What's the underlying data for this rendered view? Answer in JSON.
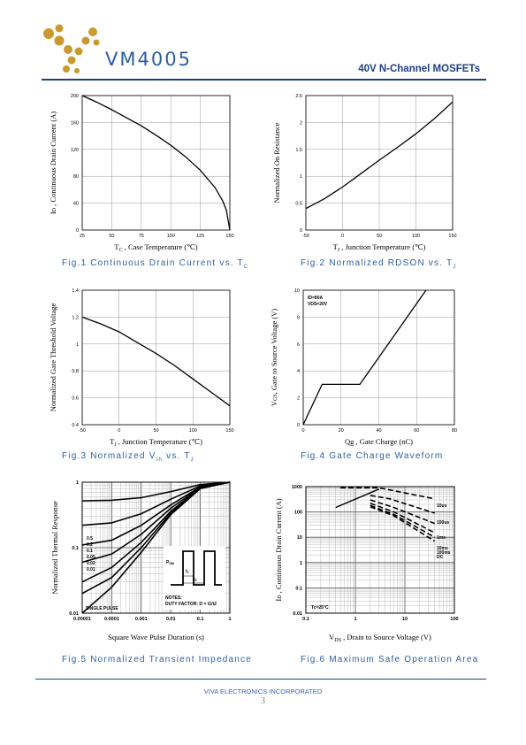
{
  "header": {
    "brand": "VM4005",
    "subtitle": "40V N-Channel MOSFETs",
    "logo_icon": "gold-dots-v-logo",
    "logo_color": "#c99a2e"
  },
  "footer": {
    "company": "VIVA ELECTRONICS INCORPORATED",
    "page": "3"
  },
  "figures": {
    "fig1": {
      "caption": "Fig.1   Continuous Drain Current vs. T",
      "caption_sub": "C"
    },
    "fig2": {
      "caption": "Fig.2   Normalized RDSON vs. T",
      "caption_sub": "J"
    },
    "fig3": {
      "caption": "Fig.3   Normalized V",
      "caption_sub1": "th",
      "caption_mid": " vs. T",
      "caption_sub2": "J"
    },
    "fig4": {
      "caption": "Fig.4   Gate Charge Waveform"
    },
    "fig5": {
      "caption": "Fig.5   Normalized Transient Impedance"
    },
    "fig6": {
      "caption": "Fig.6   Maximum Safe Operation Area"
    }
  },
  "chart_data": [
    {
      "id": "fig1",
      "type": "line",
      "xlabel": "T",
      "xlabel_sub": "C",
      "xlabel_rest": " , Case Temperature (℃)",
      "ylabel": "I",
      "ylabel_sub": "D",
      "ylabel_rest": " , Continuous Drain Current (A)",
      "xlim": [
        25,
        150
      ],
      "ylim": [
        0,
        200
      ],
      "xticks": [
        "25",
        "50",
        "75",
        "100",
        "125",
        "150"
      ],
      "yticks": [
        "0",
        "40",
        "80",
        "120",
        "160",
        "200"
      ],
      "grid": true,
      "series": [
        {
          "x": [
            25,
            37.5,
            50,
            62.5,
            75,
            87.5,
            100,
            112.5,
            125,
            137.5,
            143.75,
            147,
            150
          ],
          "y": [
            200,
            190,
            179,
            167,
            155,
            141,
            126,
            109,
            89,
            63,
            44,
            30,
            0
          ]
        }
      ]
    },
    {
      "id": "fig2",
      "type": "line",
      "xlabel": "T",
      "xlabel_sub": "J",
      "xlabel_rest": " , Junction Temperature (℃)",
      "ylabel": "Normalized On Resistance",
      "xlim": [
        -50,
        150
      ],
      "ylim": [
        0,
        2.5
      ],
      "xticks": [
        "-50",
        "0",
        "50",
        "100",
        "150"
      ],
      "yticks": [
        "0",
        "0.5",
        "1",
        "1.5",
        "2",
        "2.5"
      ],
      "grid": true,
      "series": [
        {
          "x": [
            -50,
            -25,
            0,
            25,
            50,
            75,
            100,
            125,
            150
          ],
          "y": [
            0.4,
            0.58,
            0.8,
            1.05,
            1.3,
            1.54,
            1.79,
            2.07,
            2.38
          ]
        }
      ]
    },
    {
      "id": "fig3",
      "type": "line",
      "xlabel": "T",
      "xlabel_sub": "J",
      "xlabel_rest": " , Junction Temperature (℃)",
      "ylabel": "Normalized Gate Threshold Voltage",
      "xlim": [
        -50,
        150
      ],
      "ylim": [
        0.4,
        1.4
      ],
      "xticks": [
        "-50",
        "0",
        "50",
        "100",
        "150"
      ],
      "yticks": [
        "0.4",
        "0.6",
        "0.8",
        "1",
        "1.2",
        "1.4"
      ],
      "grid": true,
      "series": [
        {
          "x": [
            -50,
            -25,
            0,
            25,
            50,
            75,
            100,
            125,
            150
          ],
          "y": [
            1.2,
            1.15,
            1.09,
            1.01,
            0.93,
            0.84,
            0.74,
            0.64,
            0.54
          ]
        }
      ]
    },
    {
      "id": "fig4",
      "type": "line",
      "xlabel": "Qg , Gate Charge (nC)",
      "ylabel": "V",
      "ylabel_sub": "GS",
      "ylabel_rest": ", Gate to Source Voltage (V)",
      "xlim": [
        0,
        80
      ],
      "ylim": [
        0,
        10
      ],
      "xticks": [
        "0",
        "20",
        "40",
        "60",
        "80"
      ],
      "yticks": [
        "0",
        "2",
        "4",
        "6",
        "8",
        "10"
      ],
      "grid": true,
      "annotations": [
        "ID=80A",
        "VDS=20V"
      ],
      "series": [
        {
          "x": [
            0,
            10,
            30,
            65
          ],
          "y": [
            0,
            3,
            3,
            10
          ]
        }
      ]
    },
    {
      "id": "fig5",
      "type": "line",
      "xlabel": "Square Wave Pulse Duration (s)",
      "ylabel": "Normalized Thermal Response",
      "xscale": "log",
      "yscale": "log",
      "xlim": [
        1e-05,
        1
      ],
      "ylim": [
        0.01,
        1
      ],
      "xticks": [
        "0.00001",
        "0.0001",
        "0.001",
        "0.01",
        "0.1",
        "1"
      ],
      "yticks": [
        "0.01",
        "0.1",
        "1"
      ],
      "grid": true,
      "duty_labels": [
        "0.5",
        "0.2",
        "0.1",
        "0.05",
        "0.02",
        "0.01"
      ],
      "single_pulse_label": "SINGLE PULSE",
      "notes": {
        "pdm": "P",
        "pdm_sub": "DM",
        "t1": "t",
        "t1_sub": "1",
        "t2": "t",
        "t2_sub": "2",
        "title": "NOTES:",
        "duty": "DUTY FACTOR: D = t1/t2"
      },
      "series": [
        {
          "name": "0.5",
          "x": [
            1e-05,
            0.0001,
            0.001,
            0.01,
            0.1,
            1
          ],
          "y": [
            0.52,
            0.53,
            0.58,
            0.72,
            0.92,
            1.0
          ]
        },
        {
          "name": "0.2",
          "x": [
            1e-05,
            0.0001,
            0.001,
            0.01,
            0.1,
            1
          ],
          "y": [
            0.22,
            0.24,
            0.33,
            0.55,
            0.88,
            1.0
          ]
        },
        {
          "name": "0.1",
          "x": [
            1e-05,
            0.0001,
            0.001,
            0.01,
            0.1,
            1
          ],
          "y": [
            0.11,
            0.13,
            0.22,
            0.45,
            0.85,
            1.0
          ]
        },
        {
          "name": "0.05",
          "x": [
            1e-05,
            0.0001,
            0.001,
            0.01,
            0.1,
            1
          ],
          "y": [
            0.06,
            0.08,
            0.16,
            0.4,
            0.83,
            1.0
          ]
        },
        {
          "name": "0.02",
          "x": [
            1e-05,
            0.0001,
            0.001,
            0.01,
            0.1,
            1
          ],
          "y": [
            0.03,
            0.05,
            0.12,
            0.36,
            0.82,
            1.0
          ]
        },
        {
          "name": "0.01",
          "x": [
            1e-05,
            0.0001,
            0.001,
            0.01,
            0.1,
            1
          ],
          "y": [
            0.02,
            0.035,
            0.1,
            0.34,
            0.81,
            1.0
          ]
        },
        {
          "name": "SINGLE PULSE",
          "x": [
            1e-05,
            0.0001,
            0.001,
            0.01,
            0.1,
            1
          ],
          "y": [
            0.01,
            0.025,
            0.085,
            0.32,
            0.8,
            1.0
          ]
        }
      ]
    },
    {
      "id": "fig6",
      "type": "line",
      "xlabel": "V",
      "xlabel_sub": "DS",
      "xlabel_rest": " , Drain to Source Voltage (V)",
      "ylabel": "I",
      "ylabel_sub": "D",
      "ylabel_rest": " , Continuous Drain Current (A)",
      "xscale": "log",
      "yscale": "log",
      "xlim": [
        0.1,
        100
      ],
      "ylim": [
        0.01,
        1000
      ],
      "xticks": [
        "0.1",
        "1",
        "10",
        "100"
      ],
      "yticks": [
        "0.01",
        "0.1",
        "1",
        "10",
        "100",
        "1000"
      ],
      "grid": true,
      "limit_labels": [
        "10us",
        "100us",
        "1ms",
        "10ms",
        "100ms",
        "DC"
      ],
      "condition": "Tc=25°C",
      "series": [
        {
          "name": "RDS limit",
          "x": [
            0.4,
            3
          ],
          "y": [
            150,
            800
          ]
        },
        {
          "name": "10us",
          "x": [
            0.5,
            3,
            40
          ],
          "y": [
            900,
            900,
            330
          ]
        },
        {
          "name": "100us",
          "x": [
            2,
            5,
            40
          ],
          "y": [
            450,
            330,
            90
          ]
        },
        {
          "name": "1ms",
          "x": [
            2,
            6,
            40
          ],
          "y": [
            300,
            150,
            35
          ]
        },
        {
          "name": "10ms",
          "x": [
            2,
            6,
            40
          ],
          "y": [
            220,
            100,
            15
          ]
        },
        {
          "name": "100ms",
          "x": [
            2,
            6,
            40
          ],
          "y": [
            180,
            80,
            10
          ]
        },
        {
          "name": "DC",
          "x": [
            2,
            6,
            40
          ],
          "y": [
            160,
            70,
            7
          ]
        }
      ]
    }
  ]
}
